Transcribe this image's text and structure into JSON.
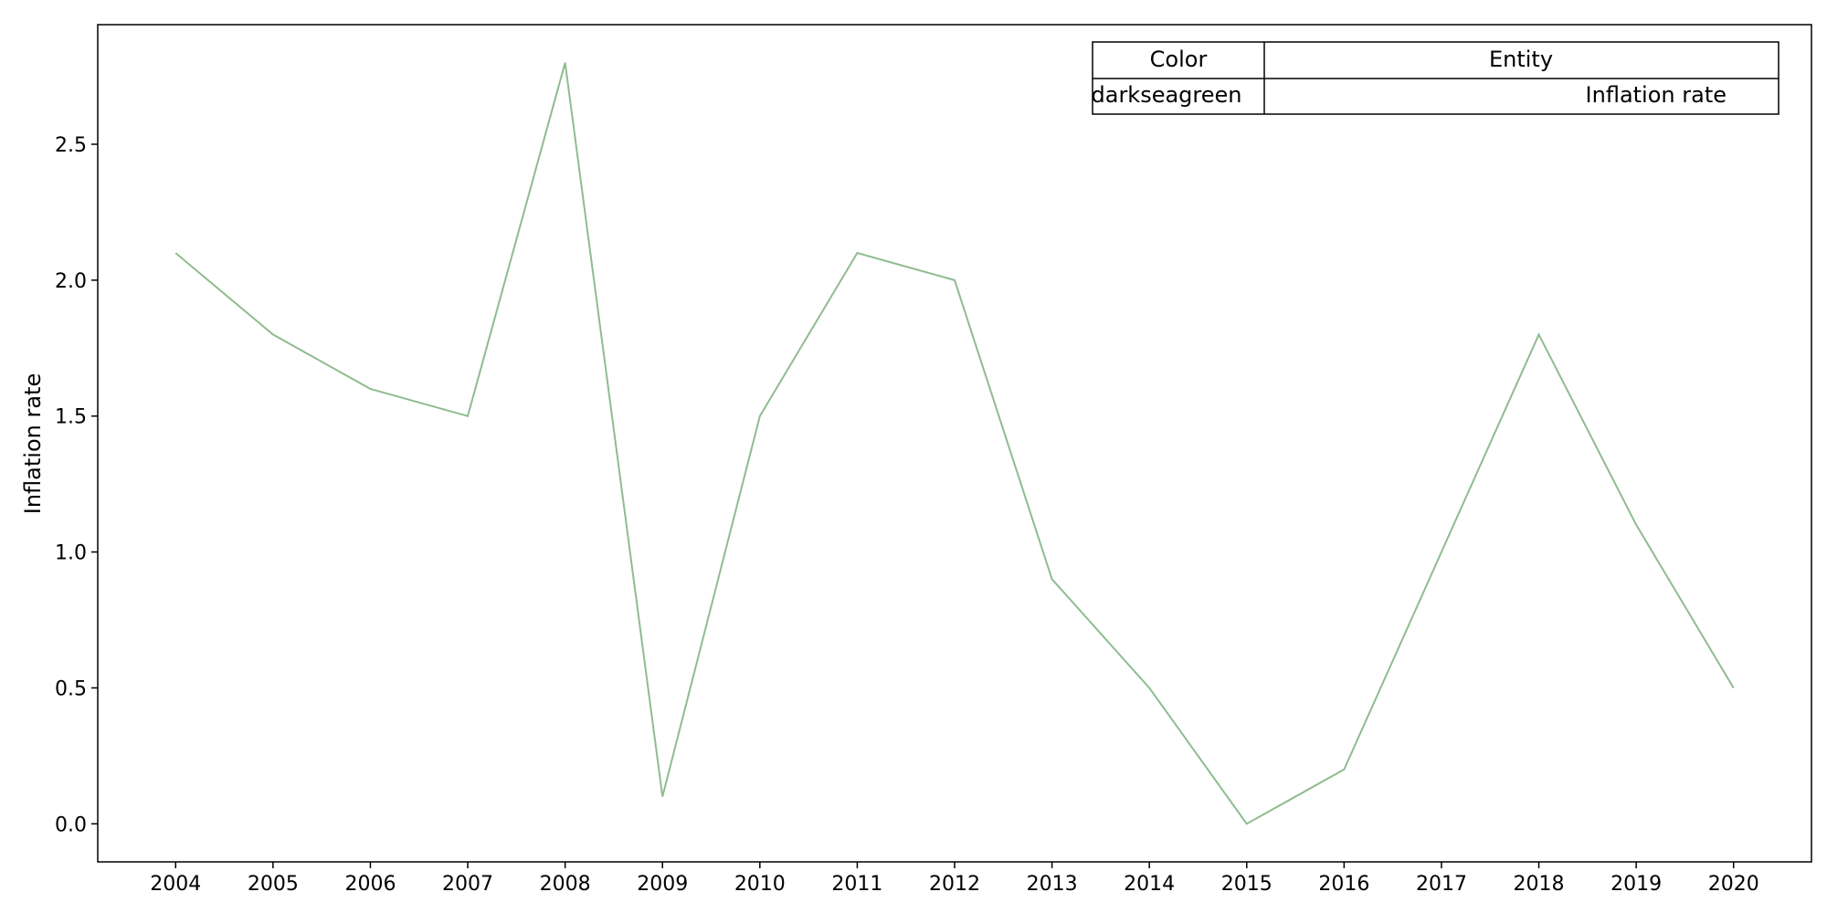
{
  "chart_data": {
    "type": "line",
    "title": "",
    "xlabel": "",
    "ylabel": "Inflation rate",
    "x": [
      2004,
      2005,
      2006,
      2007,
      2008,
      2009,
      2010,
      2011,
      2012,
      2013,
      2014,
      2015,
      2016,
      2017,
      2018,
      2019,
      2020
    ],
    "x_ticks": [
      "2004",
      "2005",
      "2006",
      "2007",
      "2008",
      "2009",
      "2010",
      "2011",
      "2012",
      "2013",
      "2014",
      "2015",
      "2016",
      "2017",
      "2018",
      "2019",
      "2020"
    ],
    "y_ticks": [
      "0.0",
      "0.5",
      "1.0",
      "1.5",
      "2.0",
      "2.5"
    ],
    "y_tick_values": [
      0,
      0.5,
      1.0,
      1.5,
      2.0,
      2.5
    ],
    "xlim": [
      2003.2,
      2020.8
    ],
    "ylim": [
      -0.14,
      2.94
    ],
    "grid": false,
    "series": [
      {
        "name": "Inflation rate",
        "color": "#8fbc8f",
        "values": [
          2.1,
          1.8,
          1.6,
          1.5,
          2.8,
          0.1,
          1.5,
          2.1,
          2.0,
          0.9,
          0.5,
          0.0,
          0.2,
          1.0,
          1.8,
          1.1,
          0.5
        ]
      }
    ],
    "legend": {
      "placement": "top-right",
      "header_color": "Color",
      "header_entity": "Entity",
      "rows": [
        {
          "color_name": "darkseagreen",
          "entity": "Inflation rate"
        }
      ]
    }
  }
}
